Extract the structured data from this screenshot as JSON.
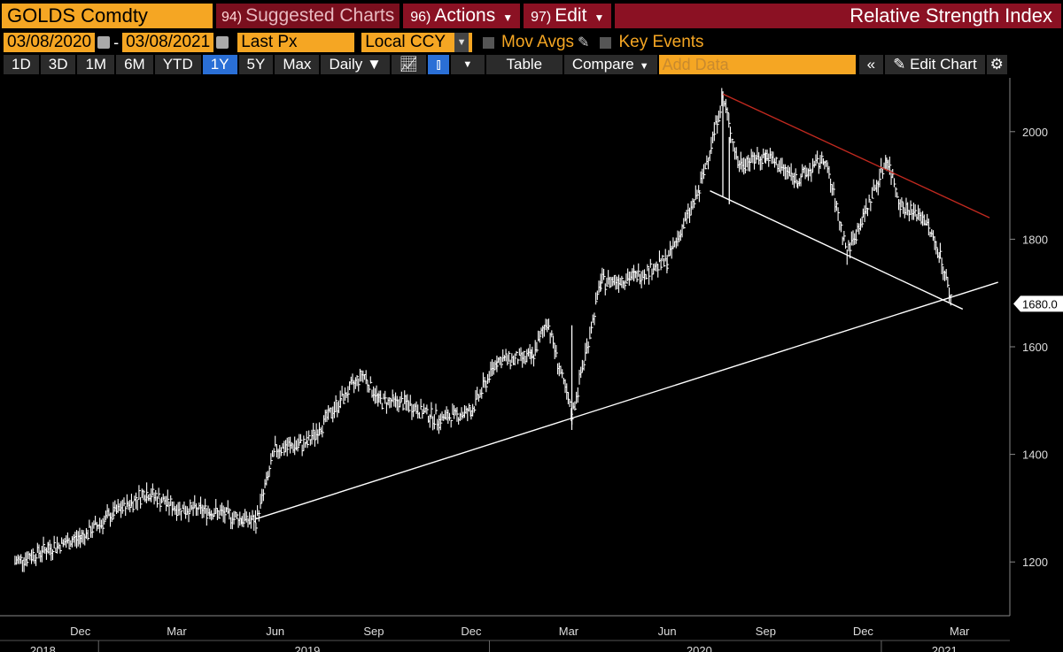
{
  "header": {
    "ticker": "GOLDS Comdty",
    "suggested": {
      "num": "94)",
      "label": "Suggested Charts"
    },
    "actions": {
      "num": "96)",
      "label": "Actions"
    },
    "edit": {
      "num": "97)",
      "label": "Edit"
    },
    "title": "Relative Strength Index"
  },
  "params": {
    "start_date": "03/08/2020",
    "end_date": "03/08/2021",
    "field": "Last Px",
    "currency": "Local CCY",
    "mov_avgs": "Mov Avgs",
    "key_events": "Key Events"
  },
  "toolbar": {
    "ranges": [
      "1D",
      "3D",
      "1M",
      "6M",
      "YTD",
      "1Y",
      "5Y",
      "Max"
    ],
    "selected_range": "1Y",
    "period": "Daily ▼",
    "table": "Table",
    "compare": "Compare",
    "add_data_placeholder": "Add Data",
    "edit_chart": "Edit Chart"
  },
  "colors": {
    "amber": "#f5a623",
    "maroon": "#8b1123",
    "selected": "#2a6fd6",
    "resistance": "#c0291f",
    "line": "#ffffff"
  },
  "chart_data": {
    "type": "line",
    "series_style": "price bars",
    "ylim": [
      1100,
      2100
    ],
    "y_ticks": [
      1200,
      1400,
      1600,
      1800,
      2000
    ],
    "last_value_label": "1680.0",
    "x_month_labels": [
      "Dec",
      "Mar",
      "Jun",
      "Sep",
      "Dec",
      "Mar",
      "Jun",
      "Sep",
      "Dec",
      "Mar"
    ],
    "x_year_labels": [
      "2018",
      "2019",
      "2020",
      "2021"
    ],
    "x_start": "2018-10",
    "x_end": "2021-05",
    "x": [
      "2018-10-15",
      "2018-11-15",
      "2018-12-15",
      "2019-01-15",
      "2019-02-15",
      "2019-03-15",
      "2019-04-15",
      "2019-05-15",
      "2019-05-28",
      "2019-06-15",
      "2019-07-15",
      "2019-08-15",
      "2019-09-05",
      "2019-09-20",
      "2019-10-15",
      "2019-11-15",
      "2019-12-15",
      "2020-01-08",
      "2020-02-10",
      "2020-02-24",
      "2020-03-18",
      "2020-04-14",
      "2020-05-15",
      "2020-06-15",
      "2020-07-15",
      "2020-08-06",
      "2020-08-20",
      "2020-09-15",
      "2020-10-15",
      "2020-11-09",
      "2020-11-30",
      "2020-12-15",
      "2021-01-06",
      "2021-01-20",
      "2021-02-10",
      "2021-02-25",
      "2021-03-08"
    ],
    "y": [
      1200,
      1225,
      1245,
      1290,
      1330,
      1300,
      1295,
      1280,
      1275,
      1410,
      1420,
      1500,
      1550,
      1500,
      1495,
      1465,
      1480,
      1575,
      1580,
      1650,
      1470,
      1720,
      1730,
      1760,
      1890,
      2065,
      1940,
      1955,
      1910,
      1950,
      1775,
      1840,
      1950,
      1860,
      1840,
      1770,
      1680
    ],
    "trendlines": [
      {
        "name": "support",
        "color": "#ffffff",
        "from": {
          "x": "2019-05-28",
          "y": 1280
        },
        "to": {
          "x": "2021-04-20",
          "y": 1720
        }
      },
      {
        "name": "channel-low",
        "color": "#ffffff",
        "from": {
          "x": "2020-07-25",
          "y": 1890
        },
        "to": {
          "x": "2021-03-18",
          "y": 1670
        }
      },
      {
        "name": "resistance",
        "color": "#c0291f",
        "from": {
          "x": "2020-08-06",
          "y": 2070
        },
        "to": {
          "x": "2021-04-12",
          "y": 1840
        }
      }
    ]
  }
}
